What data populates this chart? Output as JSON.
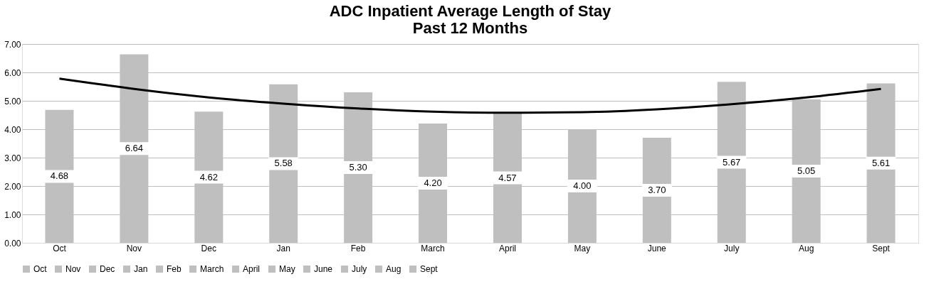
{
  "chart_data": {
    "type": "bar",
    "title": "ADC Inpatient Average Length of Stay\nPast 12 Months",
    "categories": [
      "Oct",
      "Nov",
      "Dec",
      "Jan",
      "Feb",
      "March",
      "April",
      "May",
      "June",
      "July",
      "Aug",
      "Sept"
    ],
    "series": [
      {
        "name": "Oct",
        "color": "#bfbfbf",
        "values": [
          4.68,
          null,
          null,
          null,
          null,
          null,
          null,
          null,
          null,
          null,
          null,
          null
        ],
        "value_labels": [
          "4.68",
          null,
          null,
          null,
          null,
          null,
          null,
          null,
          null,
          null,
          null,
          null
        ]
      },
      {
        "name": "Nov",
        "color": "#bfbfbf",
        "values": [
          null,
          6.64,
          null,
          null,
          null,
          null,
          null,
          null,
          null,
          null,
          null,
          null
        ],
        "value_labels": [
          null,
          "6.64",
          null,
          null,
          null,
          null,
          null,
          null,
          null,
          null,
          null,
          null
        ]
      },
      {
        "name": "Dec",
        "color": "#bfbfbf",
        "values": [
          null,
          null,
          4.62,
          null,
          null,
          null,
          null,
          null,
          null,
          null,
          null,
          null
        ],
        "value_labels": [
          null,
          null,
          "4.62",
          null,
          null,
          null,
          null,
          null,
          null,
          null,
          null,
          null
        ]
      },
      {
        "name": "Jan",
        "color": "#bfbfbf",
        "values": [
          null,
          null,
          null,
          5.58,
          null,
          null,
          null,
          null,
          null,
          null,
          null,
          null
        ],
        "value_labels": [
          null,
          null,
          null,
          "5.58",
          null,
          null,
          null,
          null,
          null,
          null,
          null,
          null
        ]
      },
      {
        "name": "Feb",
        "color": "#bfbfbf",
        "values": [
          null,
          null,
          null,
          null,
          5.3,
          null,
          null,
          null,
          null,
          null,
          null,
          null
        ],
        "value_labels": [
          null,
          null,
          null,
          null,
          "5.30",
          null,
          null,
          null,
          null,
          null,
          null,
          null
        ]
      },
      {
        "name": "March",
        "color": "#bfbfbf",
        "values": [
          null,
          null,
          null,
          null,
          null,
          4.2,
          null,
          null,
          null,
          null,
          null,
          null
        ],
        "value_labels": [
          null,
          null,
          null,
          null,
          null,
          "4.20",
          null,
          null,
          null,
          null,
          null,
          null
        ]
      },
      {
        "name": "April",
        "color": "#bfbfbf",
        "values": [
          null,
          null,
          null,
          null,
          null,
          null,
          4.57,
          null,
          null,
          null,
          null,
          null
        ],
        "value_labels": [
          null,
          null,
          null,
          null,
          null,
          null,
          "4.57",
          null,
          null,
          null,
          null,
          null
        ]
      },
      {
        "name": "May",
        "color": "#bfbfbf",
        "values": [
          null,
          null,
          null,
          null,
          null,
          null,
          null,
          4.0,
          null,
          null,
          null,
          null
        ],
        "value_labels": [
          null,
          null,
          null,
          null,
          null,
          null,
          null,
          "4.00",
          null,
          null,
          null,
          null
        ]
      },
      {
        "name": "June",
        "color": "#bfbfbf",
        "values": [
          null,
          null,
          null,
          null,
          null,
          null,
          null,
          null,
          3.7,
          null,
          null,
          null
        ],
        "value_labels": [
          null,
          null,
          null,
          null,
          null,
          null,
          null,
          null,
          "3.70",
          null,
          null,
          null
        ]
      },
      {
        "name": "July",
        "color": "#bfbfbf",
        "values": [
          null,
          null,
          null,
          null,
          null,
          null,
          null,
          null,
          null,
          5.67,
          null,
          null
        ],
        "value_labels": [
          null,
          null,
          null,
          null,
          null,
          null,
          null,
          null,
          null,
          "5.67",
          null,
          null
        ]
      },
      {
        "name": "Aug",
        "color": "#bfbfbf",
        "values": [
          null,
          null,
          null,
          null,
          null,
          null,
          null,
          null,
          null,
          null,
          5.05,
          null
        ],
        "value_labels": [
          null,
          null,
          null,
          null,
          null,
          null,
          null,
          null,
          null,
          null,
          "5.05",
          null
        ]
      },
      {
        "name": "Sept",
        "color": "#bfbfbf",
        "values": [
          null,
          null,
          null,
          null,
          null,
          null,
          null,
          null,
          null,
          null,
          null,
          5.61
        ],
        "value_labels": [
          null,
          null,
          null,
          null,
          null,
          null,
          null,
          null,
          null,
          null,
          null,
          "5.61"
        ]
      },
      {
        "type": "line",
        "color": "#000000",
        "values": [
          5.78,
          5.42,
          5.12,
          4.9,
          4.73,
          4.62,
          4.58,
          4.6,
          4.7,
          4.88,
          5.12,
          5.42
        ]
      }
    ],
    "ylim": [
      0,
      7
    ],
    "yticks": [
      {
        "value": 0,
        "label": "0.00"
      },
      {
        "value": 1,
        "label": "1.00"
      },
      {
        "value": 2,
        "label": "2.00"
      },
      {
        "value": 3,
        "label": "3.00"
      },
      {
        "value": 4,
        "label": "4.00"
      },
      {
        "value": 5,
        "label": "5.00"
      },
      {
        "value": 6,
        "label": "6.00"
      },
      {
        "value": 7,
        "label": "7.00"
      }
    ],
    "grid": "y",
    "legend": "bottom"
  }
}
